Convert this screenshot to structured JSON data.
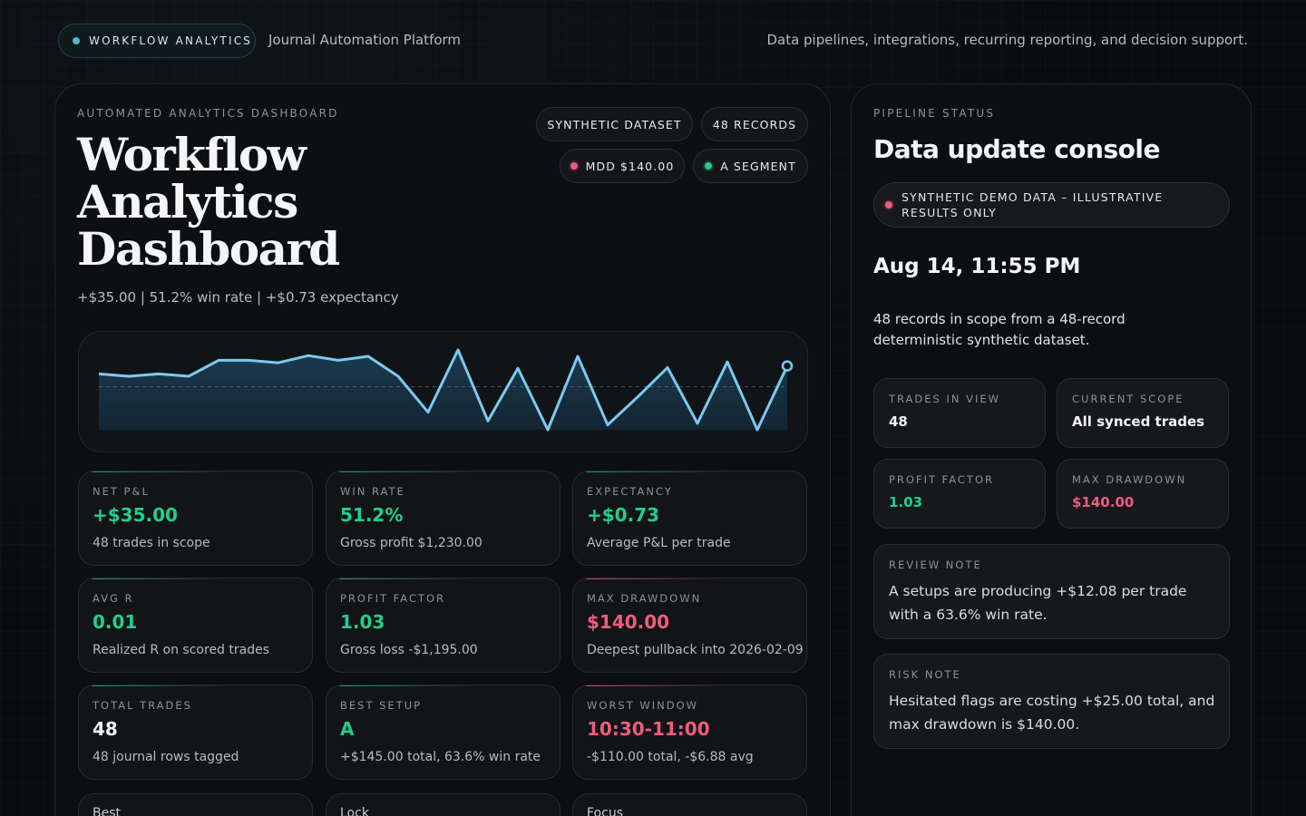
{
  "header": {
    "brand": "WORKFLOW ANALYTICS",
    "platform": "Journal Automation Platform",
    "tagline": "Data pipelines, integrations, recurring reporting, and decision support."
  },
  "dashboard": {
    "eyebrow": "AUTOMATED ANALYTICS DASHBOARD",
    "title": "Workflow Analytics Dashboard",
    "summary": "+$35.00 | 51.2% win rate | +$0.73 expectancy",
    "chips": {
      "dataset": "SYNTHETIC DATASET",
      "records": "48 RECORDS",
      "mdd": "MDD $140.00",
      "segment": "A SEGMENT"
    }
  },
  "chart_data": {
    "type": "line",
    "points": [
      0.3,
      0.33,
      0.3,
      0.33,
      0.13,
      0.13,
      0.16,
      0.07,
      0.13,
      0.08,
      0.33,
      0.78,
      0.0,
      0.89,
      0.23,
      1.0,
      0.08,
      0.94,
      0.59,
      0.22,
      0.92,
      0.15,
      1.0,
      0.2
    ],
    "baseline": 0.46,
    "line_color": "#7cc9ef"
  },
  "metrics": [
    {
      "label": "NET P&L",
      "value": "+$35.00",
      "sub": "48 trades in scope",
      "tone": "pos"
    },
    {
      "label": "WIN RATE",
      "value": "51.2%",
      "sub": "Gross profit $1,230.00",
      "tone": "pos"
    },
    {
      "label": "EXPECTANCY",
      "value": "+$0.73",
      "sub": "Average P&L per trade",
      "tone": "pos"
    },
    {
      "label": "AVG R",
      "value": "0.01",
      "sub": "Realized R on scored trades",
      "tone": "pos"
    },
    {
      "label": "PROFIT FACTOR",
      "value": "1.03",
      "sub": "Gross loss -$1,195.00",
      "tone": "pos"
    },
    {
      "label": "MAX DRAWDOWN",
      "value": "$140.00",
      "sub": "Deepest pullback into 2026-02-09",
      "tone": "neg"
    },
    {
      "label": "TOTAL TRADES",
      "value": "48",
      "sub": "48 journal rows tagged",
      "tone": "neutral"
    },
    {
      "label": "BEST SETUP",
      "value": "A",
      "sub": "+$145.00 total, 63.6% win rate",
      "tone": "pos"
    },
    {
      "label": "WORST WINDOW",
      "value": "10:30-11:00",
      "sub": "-$110.00 total, -$6.88 avg",
      "tone": "neg"
    }
  ],
  "bottom_cards": [
    "Best",
    "Lock",
    "Focus"
  ],
  "side": {
    "eyebrow": "PIPELINE STATUS",
    "title": "Data update console",
    "notice": "SYNTHETIC DEMO DATA – ILLUSTRATIVE RESULTS ONLY",
    "timestamp": "Aug 14, 11:55 PM",
    "scope_text": "48 records in scope from a 48-record deterministic synthetic dataset.",
    "stats": [
      {
        "label": "TRADES IN VIEW",
        "value": "48",
        "tone": "neutral"
      },
      {
        "label": "CURRENT SCOPE",
        "value": "All synced trades",
        "tone": "neutral"
      },
      {
        "label": "PROFIT FACTOR",
        "value": "1.03",
        "tone": "pos"
      },
      {
        "label": "MAX DRAWDOWN",
        "value": "$140.00",
        "tone": "neg"
      }
    ],
    "review": {
      "label": "REVIEW NOTE",
      "text": "A setups are producing +$12.08 per trade with a 63.6% win rate."
    },
    "risk": {
      "label": "RISK NOTE",
      "text": "Hesitated flags are costing +$25.00 total, and max drawdown is $140.00."
    }
  }
}
